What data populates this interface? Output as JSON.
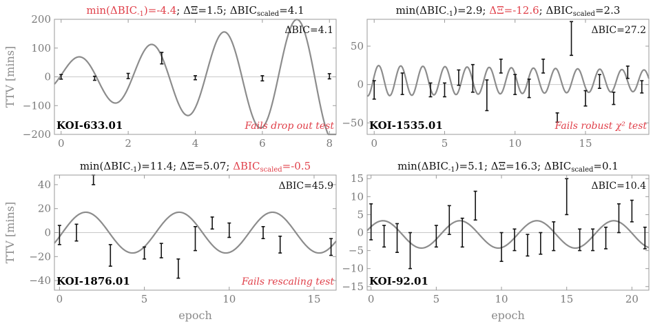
{
  "xlabel": "epoch",
  "ylabel": "TTV [mins]",
  "chart_data": [
    {
      "type": "scatter",
      "title_parts": [
        {
          "text": "min(ΔBIC",
          "red": true
        },
        {
          "text": "-1",
          "red": true,
          "sub": true
        },
        {
          "text": ")=-4.4",
          "red": true
        },
        {
          "text": "; ΔΞ=1.5; ΔBIC",
          "red": false
        },
        {
          "text": "scaled",
          "red": false,
          "sub": true
        },
        {
          "text": "=4.1",
          "red": false
        }
      ],
      "koi": "KOI-633.01",
      "fail": "Fails drop out test",
      "dbic": "ΔBIC=4.1",
      "xlim": [
        -0.2,
        8.2
      ],
      "ylim": [
        -200,
        200
      ],
      "xticks": [
        0,
        2,
        4,
        6,
        8
      ],
      "yticks": [
        -200,
        -100,
        0,
        100,
        200
      ],
      "model": {
        "amp": 55,
        "amp_slope": 20,
        "period": 2.17,
        "phase": 0.1,
        "offset": 0
      },
      "x": [
        0,
        1,
        2,
        3,
        4,
        6,
        8
      ],
      "y": [
        0,
        -5,
        3,
        65,
        -3,
        -5,
        2
      ],
      "yerr": [
        8,
        7,
        9,
        20,
        7,
        9,
        9
      ]
    },
    {
      "type": "scatter",
      "title_parts": [
        {
          "text": "min(ΔBIC",
          "red": false
        },
        {
          "text": "-1",
          "red": false,
          "sub": true
        },
        {
          "text": ")=2.9; ",
          "red": false
        },
        {
          "text": "ΔΞ=-12.6",
          "red": true
        },
        {
          "text": "; ΔBIC",
          "red": false
        },
        {
          "text": "scaled",
          "red": false,
          "sub": true
        },
        {
          "text": "=2.3",
          "red": false
        }
      ],
      "koi": "KOI-1535.01",
      "fail": "Fails robust χ² test",
      "dbic": "ΔBIC=27.2",
      "xlim": [
        -0.5,
        19.5
      ],
      "ylim": [
        -65,
        85
      ],
      "xticks": [
        0,
        5,
        10,
        15
      ],
      "yticks": [
        -50,
        0,
        50
      ],
      "model": {
        "amp": 20,
        "amp_slope": -0.3,
        "period": 1.57,
        "phase": 0.3,
        "offset": 5
      },
      "x": [
        0,
        2,
        4,
        5,
        6,
        7,
        8,
        9,
        10,
        11,
        12,
        13,
        14,
        15,
        16,
        17,
        18,
        19
      ],
      "y": [
        -7,
        1,
        -7,
        -7,
        9,
        8,
        -14,
        24,
        0,
        -5,
        24,
        -43,
        60,
        -18,
        4,
        -18,
        16,
        -3
      ],
      "yerr": [
        12,
        14,
        9,
        9,
        10,
        18,
        20,
        9,
        13,
        12,
        9,
        6,
        22,
        10,
        9,
        8,
        8,
        8
      ]
    },
    {
      "type": "scatter",
      "title_parts": [
        {
          "text": "min(ΔBIC",
          "red": false
        },
        {
          "text": "-1",
          "red": false,
          "sub": true
        },
        {
          "text": ")=11.4; ΔΞ=5.07; ",
          "red": false
        },
        {
          "text": "ΔBIC",
          "red": true
        },
        {
          "text": "scaled",
          "red": true,
          "sub": true
        },
        {
          "text": "=-0.5",
          "red": true
        }
      ],
      "koi": "KOI-1876.01",
      "fail": "Fails rescaling test",
      "dbic": "ΔBIC=45.9",
      "xlim": [
        -0.3,
        16.3
      ],
      "ylim": [
        -48,
        48
      ],
      "xticks": [
        0,
        5,
        10,
        15
      ],
      "yticks": [
        -40,
        -20,
        0,
        20,
        40
      ],
      "model": {
        "amp": 17,
        "amp_slope": 0,
        "period": 5.5,
        "phase": -0.2,
        "offset": 0
      },
      "x": [
        0,
        1,
        2,
        3,
        5,
        6,
        7,
        8,
        9,
        10,
        12,
        13,
        16
      ],
      "y": [
        -2,
        0,
        44,
        -19,
        -17,
        -15,
        -30,
        -5,
        8,
        2,
        0,
        -10,
        -12
      ],
      "yerr": [
        8,
        7,
        4,
        9,
        5,
        6,
        8,
        10,
        5,
        6,
        5,
        7,
        7
      ]
    },
    {
      "type": "scatter",
      "title_parts": [
        {
          "text": "min(ΔBIC",
          "red": false
        },
        {
          "text": "-1",
          "red": false,
          "sub": true
        },
        {
          "text": ")=5.1; ΔΞ=16.3; ΔBIC",
          "red": false
        },
        {
          "text": "scaled",
          "red": false,
          "sub": true
        },
        {
          "text": "=0.1",
          "red": false
        }
      ],
      "koi": "KOI-92.01",
      "fail": "",
      "dbic": "ΔBIC=10.4",
      "xlim": [
        -0.3,
        21.3
      ],
      "ylim": [
        -16,
        16
      ],
      "xticks": [
        0,
        5,
        10,
        15,
        20
      ],
      "yticks": [
        -15,
        -10,
        -5,
        0,
        5,
        10,
        15
      ],
      "model": {
        "amp": 3.8,
        "amp_slope": 0,
        "period": 5.9,
        "phase": 0.6,
        "offset": -0.5
      },
      "x": [
        0,
        1,
        2,
        3,
        5,
        6,
        7,
        8,
        10,
        11,
        12,
        13,
        14,
        15,
        16,
        17,
        18,
        19,
        20,
        21
      ],
      "y": [
        3,
        -1,
        -1.5,
        -5,
        -1,
        3.5,
        0,
        7.5,
        -4,
        -2,
        -3.5,
        -3,
        -1,
        10,
        -2,
        -2,
        -1.5,
        4,
        6,
        -1.5
      ],
      "yerr": [
        5,
        3,
        4,
        5,
        3,
        4,
        4,
        4,
        4,
        3,
        3,
        3,
        4,
        5,
        3,
        3,
        3,
        4,
        3,
        3
      ]
    }
  ]
}
